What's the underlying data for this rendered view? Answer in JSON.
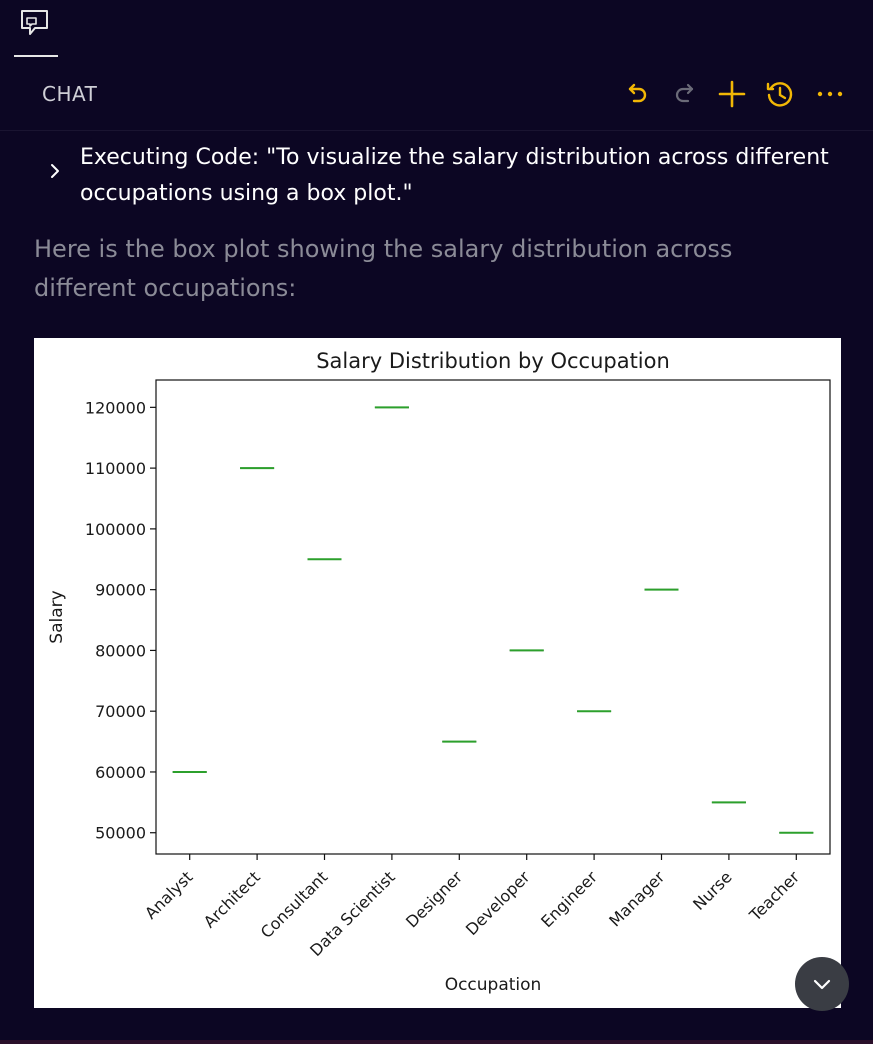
{
  "header": {
    "title": "CHAT",
    "actions": [
      {
        "name": "undo-icon",
        "color": "#f2b705"
      },
      {
        "name": "redo-icon",
        "color": "#6b6b78"
      },
      {
        "name": "plus-icon",
        "color": "#f2b705"
      },
      {
        "name": "history-icon",
        "color": "#f2b705"
      },
      {
        "name": "more-icon",
        "color": "#f2b705"
      }
    ]
  },
  "execution": {
    "text": "Executing Code: \"To visualize the salary distribution across different occupations using a box plot.\""
  },
  "answer": {
    "text": "Here is the box plot showing the salary distribution across different occupations:"
  },
  "chart_data": {
    "type": "box",
    "title": "Salary Distribution by Occupation",
    "xlabel": "Occupation",
    "ylabel": "Salary",
    "ylim": [
      46500,
      124500
    ],
    "yticks": [
      50000,
      60000,
      70000,
      80000,
      90000,
      100000,
      110000,
      120000
    ],
    "categories": [
      "Analyst",
      "Architect",
      "Consultant",
      "Data Scientist",
      "Designer",
      "Developer",
      "Engineer",
      "Manager",
      "Nurse",
      "Teacher"
    ],
    "values": [
      60000,
      110000,
      95000,
      120000,
      65000,
      80000,
      70000,
      90000,
      55000,
      50000
    ],
    "median_color": "#2ca02c",
    "grid": false,
    "legend": "none"
  }
}
